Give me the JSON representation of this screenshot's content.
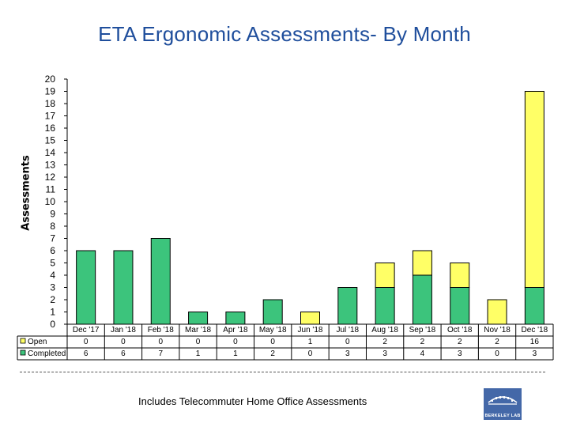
{
  "chart_data": {
    "type": "bar",
    "stacked": true,
    "title": "ETA Ergonomic Assessments- By Month",
    "xlabel": "",
    "ylabel": "Assessments",
    "ylim": [
      0,
      20
    ],
    "yticks": [
      0,
      1,
      2,
      3,
      4,
      5,
      6,
      7,
      8,
      9,
      10,
      11,
      12,
      13,
      14,
      15,
      16,
      17,
      18,
      19,
      20
    ],
    "categories": [
      "Dec '17",
      "Jan '18",
      "Feb '18",
      "Mar '18",
      "Apr '18",
      "May '18",
      "Jun '18",
      "Jul '18",
      "Aug '18",
      "Sep '18",
      "Oct '18",
      "Nov '18",
      "Dec '18"
    ],
    "series": [
      {
        "name": "Completed",
        "color": "#3cc47c",
        "values": [
          6,
          6,
          7,
          1,
          1,
          2,
          0,
          3,
          3,
          4,
          3,
          0,
          3
        ]
      },
      {
        "name": "Open",
        "color": "#ffff66",
        "values": [
          0,
          0,
          0,
          0,
          0,
          0,
          1,
          0,
          2,
          2,
          2,
          2,
          16
        ]
      }
    ],
    "data_table": true,
    "legend": "data-table"
  },
  "footnote": "Includes Telecommuter Home Office Assessments",
  "logo_text": "BERKELEY LAB"
}
